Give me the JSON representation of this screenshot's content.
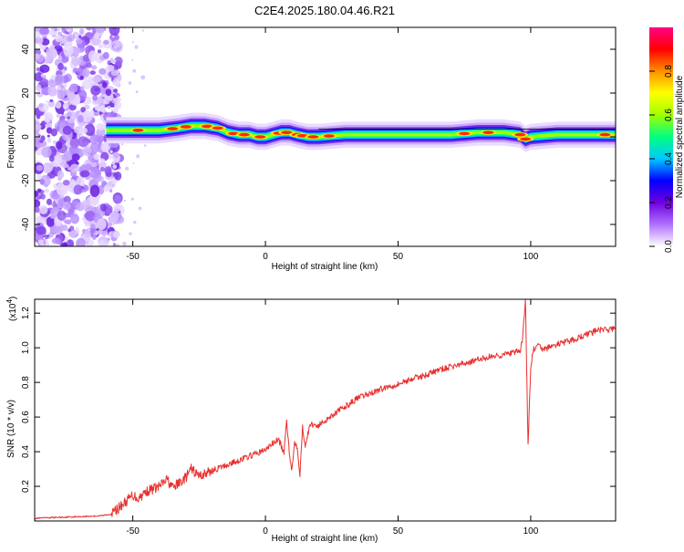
{
  "title": "C2E4.2025.180.04.46.R21",
  "chart_data": [
    {
      "type": "heatmap",
      "xlabel": "Height of straight line (km)",
      "ylabel": "Frequency (Hz)",
      "xlim": [
        -87,
        132
      ],
      "ylim": [
        -50,
        50
      ],
      "xticks": [
        -50,
        0,
        50,
        100
      ],
      "yticks": [
        -40,
        -20,
        0,
        20,
        40
      ],
      "colorbar": {
        "label": "Normalized spectral amplitude",
        "range": [
          0,
          1
        ],
        "ticks": [
          0.0,
          0.2,
          0.4,
          0.6,
          0.8
        ],
        "tick_labels": [
          "0.0",
          "0.2",
          "0.4",
          "0.6",
          "0.8"
        ],
        "colormap": [
          "#ffffff",
          "#b070ff",
          "#7000e0",
          "#0000ff",
          "#00c8ff",
          "#00ff80",
          "#a0ff00",
          "#ffff00",
          "#ff9000",
          "#ff0000",
          "#ff0088"
        ]
      },
      "noise_region": {
        "x": [
          -87,
          -59
        ],
        "y": [
          -50,
          50
        ]
      },
      "ridge": {
        "x": [
          -60,
          -50,
          -40,
          -33,
          -28,
          -23,
          -18,
          -14,
          -10,
          -6,
          -3,
          0,
          3,
          6,
          9,
          12,
          16,
          20,
          30,
          50,
          70,
          80,
          90,
          96,
          98,
          100,
          110,
          120,
          132
        ],
        "freq": [
          3,
          3,
          3,
          4,
          5,
          5,
          4,
          2,
          1,
          1,
          0,
          0,
          1,
          2,
          2,
          1,
          0,
          0,
          1,
          1,
          1,
          2,
          2,
          1,
          -1,
          0,
          1,
          1,
          1
        ],
        "peaks_x": [
          -48,
          -35,
          -30,
          -22,
          -18,
          -12,
          -8,
          -2,
          5,
          8,
          12,
          14,
          18,
          24,
          75,
          84,
          96,
          98,
          128
        ]
      }
    },
    {
      "type": "line",
      "xlabel": "Height of straight line (km)",
      "ylabel": "SNR (10 * v/v)",
      "y_multiplier": "(x10",
      "y_multiplier_exp": "4",
      "xlim": [
        -87,
        132
      ],
      "ylim": [
        0,
        12800
      ],
      "xticks": [
        -50,
        0,
        50,
        100
      ],
      "yticks": [
        2000,
        4000,
        6000,
        8000,
        10000,
        12000
      ],
      "ytick_labels": [
        "0.2",
        "0.4",
        "0.6",
        "0.8",
        "1.0",
        "1.2"
      ],
      "series": [
        {
          "color": "#e83030",
          "x": [
            -87,
            -80,
            -70,
            -62,
            -58,
            -55,
            -52,
            -50,
            -48,
            -45,
            -40,
            -37,
            -35,
            -30,
            -28,
            -25,
            -20,
            -15,
            -10,
            -5,
            0,
            2,
            5,
            7,
            8,
            9,
            10,
            11,
            12,
            13,
            14,
            15,
            17,
            20,
            25,
            30,
            35,
            40,
            45,
            50,
            55,
            60,
            65,
            70,
            75,
            80,
            85,
            90,
            93,
            96,
            97,
            98,
            99,
            100,
            101,
            103,
            105,
            110,
            115,
            120,
            125,
            132
          ],
          "y": [
            150,
            200,
            250,
            300,
            400,
            800,
            1200,
            1500,
            1300,
            1700,
            2000,
            2400,
            1900,
            2500,
            3000,
            2600,
            2900,
            3200,
            3500,
            3800,
            4100,
            4400,
            4700,
            3900,
            5800,
            4000,
            2900,
            4600,
            4300,
            2700,
            5400,
            4400,
            5600,
            5500,
            6100,
            6600,
            7100,
            7400,
            7700,
            7900,
            8200,
            8400,
            8700,
            8900,
            9100,
            9300,
            9500,
            9600,
            9700,
            9800,
            10600,
            12800,
            4300,
            8900,
            9900,
            10100,
            9900,
            10200,
            10400,
            10700,
            11000,
            11100
          ]
        }
      ]
    }
  ]
}
